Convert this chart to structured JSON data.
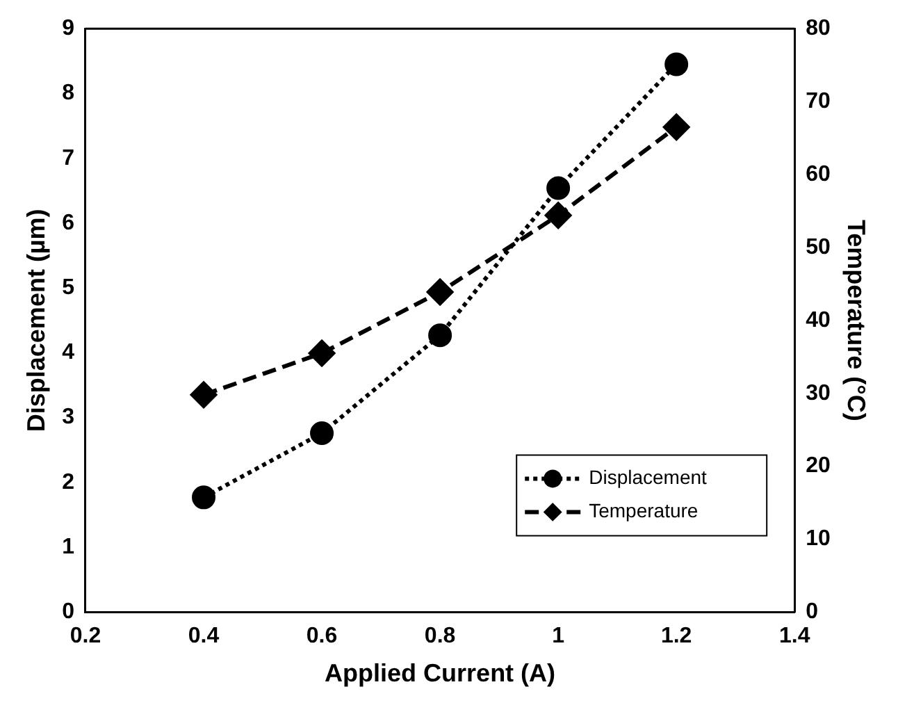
{
  "chart_data": {
    "type": "line",
    "xlabel": "Applied Current (A)",
    "ylabel": "Displacement (µm)",
    "y2label": "Temperature (°C)",
    "x": [
      0.4,
      0.6,
      0.8,
      1.0,
      1.2
    ],
    "series": [
      {
        "name": "Displacement",
        "color": "#000000",
        "values": [
          1.77,
          2.76,
          4.27,
          6.54,
          8.45
        ],
        "marker": "circle",
        "line_style": "dotted"
      },
      {
        "name": "Temperature",
        "color": "#000000",
        "values": [
          29.8,
          35.5,
          43.9,
          54.4,
          66.5
        ],
        "marker": "diamond",
        "line_style": "dashed",
        "axis": "y2"
      }
    ],
    "xlim": [
      0.2,
      1.4
    ],
    "xticks": [
      0.2,
      0.4,
      0.6,
      0.8,
      1,
      1.2,
      1.4
    ],
    "ylim": [
      0,
      9
    ],
    "yticks": [
      0,
      1,
      2,
      3,
      4,
      5,
      6,
      7,
      8,
      9
    ],
    "y2lim": [
      0,
      80
    ],
    "y2ticks": [
      0,
      10,
      20,
      30,
      40,
      50,
      60,
      70,
      80
    ],
    "grid": false,
    "legend": "bottom right"
  }
}
